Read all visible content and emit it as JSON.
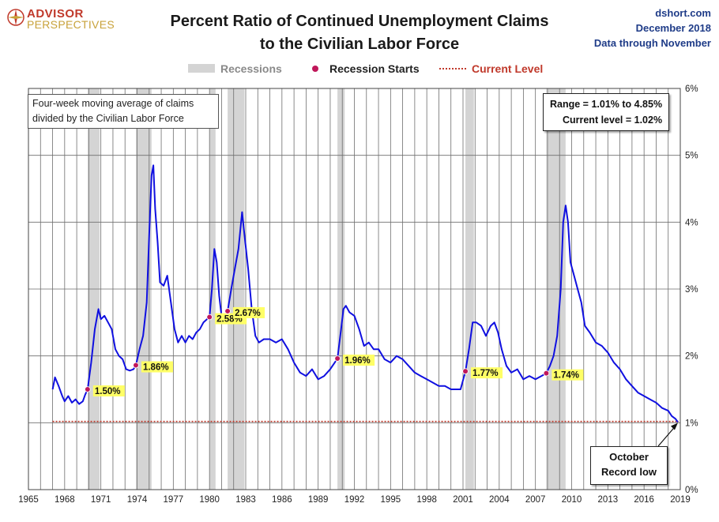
{
  "logo": {
    "line1": "ADVISOR",
    "line2": "PERSPECTIVES"
  },
  "header": {
    "title_line1": "Percent Ratio of Continued Unemployment Claims",
    "title_line2": "to the Civilian Labor Force",
    "source": "dshort.com",
    "date": "December 2018",
    "through": "Data through November"
  },
  "legend": {
    "recessions": "Recessions",
    "recession_starts": "Recession Starts",
    "current_level": "Current Level"
  },
  "notes": {
    "box_line1": "Four-week moving average of claims",
    "box_line2": "divided by the Civilian Labor Force",
    "range": "Range = 1.01% to 4.85%",
    "current": "Current level = 1.02%",
    "callout_line1": "October",
    "callout_line2": "Record low"
  },
  "colors": {
    "series": "#1010e0",
    "recession": "#d4d4d4",
    "current_level": "#c0392b",
    "marker": "#c0175a",
    "label_bg": "#ffff66",
    "title": "#1a1a1a",
    "source": "#1f3c88"
  },
  "chart_data": {
    "type": "line",
    "x_unit": "year",
    "xlim": [
      1965,
      2019
    ],
    "ylim": [
      0,
      6
    ],
    "x_tick_labels": [
      "1965",
      "1968",
      "1971",
      "1974",
      "1977",
      "1980",
      "1983",
      "1986",
      "1989",
      "1992",
      "1995",
      "1998",
      "2001",
      "2004",
      "2007",
      "2010",
      "2013",
      "2016",
      "2019"
    ],
    "y_tick_labels": [
      "0%",
      "1%",
      "2%",
      "3%",
      "4%",
      "5%",
      "6%"
    ],
    "y_axis_side": "right",
    "grid": "vertical lines each year, horizontal lines each 1%",
    "current_level": 1.02,
    "recessions": [
      [
        1969.9,
        1970.9
      ],
      [
        1973.9,
        1975.2
      ],
      [
        1980.0,
        1980.5
      ],
      [
        1981.5,
        1982.9
      ],
      [
        1990.6,
        1991.2
      ],
      [
        2001.2,
        2001.9
      ],
      [
        2007.9,
        2009.5
      ]
    ],
    "recession_starts": [
      {
        "x": 1969.9,
        "y": 1.5,
        "label": "1.50%"
      },
      {
        "x": 1973.9,
        "y": 1.86,
        "label": "1.86%"
      },
      {
        "x": 1980.0,
        "y": 2.58,
        "label": "2.58%"
      },
      {
        "x": 1981.5,
        "y": 2.67,
        "label": "2.67%"
      },
      {
        "x": 1990.6,
        "y": 1.96,
        "label": "1.96%"
      },
      {
        "x": 2001.2,
        "y": 1.77,
        "label": "1.77%"
      },
      {
        "x": 2007.9,
        "y": 1.74,
        "label": "1.74%"
      }
    ],
    "series": [
      {
        "x": [
          1967.0,
          1967.2,
          1967.5,
          1967.8,
          1968.0,
          1968.3,
          1968.6,
          1968.9,
          1969.2,
          1969.5,
          1969.7,
          1969.9,
          1970.2,
          1970.5,
          1970.8,
          1971.0,
          1971.3,
          1971.6,
          1971.9,
          1972.2,
          1972.5,
          1972.8,
          1973.1,
          1973.4,
          1973.7,
          1973.9,
          1974.2,
          1974.5,
          1974.8,
          1975.0,
          1975.2,
          1975.35,
          1975.5,
          1975.7,
          1975.9,
          1976.2,
          1976.5,
          1976.8,
          1977.1,
          1977.4,
          1977.7,
          1978.0,
          1978.3,
          1978.6,
          1978.9,
          1979.2,
          1979.5,
          1979.8,
          1980.0,
          1980.2,
          1980.4,
          1980.6,
          1980.8,
          1981.0,
          1981.3,
          1981.5,
          1981.8,
          1982.1,
          1982.4,
          1982.7,
          1982.9,
          1983.2,
          1983.5,
          1983.8,
          1984.1,
          1984.5,
          1985.0,
          1985.5,
          1986.0,
          1986.5,
          1987.0,
          1987.5,
          1988.0,
          1988.5,
          1989.0,
          1989.5,
          1990.0,
          1990.3,
          1990.6,
          1990.9,
          1991.1,
          1991.3,
          1991.6,
          1992.0,
          1992.4,
          1992.8,
          1993.2,
          1993.6,
          1994.0,
          1994.5,
          1995.0,
          1995.5,
          1996.0,
          1996.5,
          1997.0,
          1997.5,
          1998.0,
          1998.5,
          1999.0,
          1999.5,
          2000.0,
          2000.5,
          2000.8,
          2001.2,
          2001.5,
          2001.8,
          2002.1,
          2002.5,
          2002.9,
          2003.3,
          2003.6,
          2003.9,
          2004.2,
          2004.6,
          2005.0,
          2005.5,
          2006.0,
          2006.5,
          2007.0,
          2007.5,
          2007.9,
          2008.2,
          2008.5,
          2008.8,
          2009.1,
          2009.3,
          2009.5,
          2009.7,
          2009.9,
          2010.2,
          2010.5,
          2010.8,
          2011.1,
          2011.5,
          2012.0,
          2012.5,
          2013.0,
          2013.5,
          2014.0,
          2014.5,
          2015.0,
          2015.5,
          2016.0,
          2016.5,
          2017.0,
          2017.5,
          2018.0,
          2018.3,
          2018.6,
          2018.8
        ],
        "y": [
          1.5,
          1.68,
          1.55,
          1.4,
          1.32,
          1.4,
          1.3,
          1.35,
          1.28,
          1.32,
          1.42,
          1.5,
          1.9,
          2.4,
          2.7,
          2.55,
          2.6,
          2.5,
          2.4,
          2.1,
          2.0,
          1.95,
          1.8,
          1.78,
          1.8,
          1.86,
          2.1,
          2.3,
          2.8,
          3.8,
          4.7,
          4.85,
          4.2,
          3.7,
          3.1,
          3.05,
          3.2,
          2.8,
          2.4,
          2.2,
          2.3,
          2.2,
          2.3,
          2.25,
          2.35,
          2.4,
          2.5,
          2.55,
          2.58,
          3.0,
          3.6,
          3.4,
          2.9,
          2.6,
          2.55,
          2.67,
          3.0,
          3.3,
          3.6,
          4.15,
          3.8,
          3.3,
          2.7,
          2.3,
          2.2,
          2.25,
          2.25,
          2.2,
          2.25,
          2.1,
          1.9,
          1.75,
          1.7,
          1.8,
          1.65,
          1.7,
          1.8,
          1.88,
          1.96,
          2.4,
          2.7,
          2.75,
          2.65,
          2.6,
          2.4,
          2.15,
          2.2,
          2.1,
          2.1,
          1.95,
          1.9,
          2.0,
          1.95,
          1.85,
          1.75,
          1.7,
          1.65,
          1.6,
          1.55,
          1.55,
          1.5,
          1.5,
          1.5,
          1.77,
          2.1,
          2.5,
          2.5,
          2.45,
          2.3,
          2.45,
          2.5,
          2.35,
          2.1,
          1.85,
          1.75,
          1.8,
          1.65,
          1.7,
          1.65,
          1.7,
          1.74,
          1.85,
          2.0,
          2.3,
          3.0,
          4.0,
          4.25,
          4.0,
          3.4,
          3.2,
          3.0,
          2.8,
          2.45,
          2.35,
          2.2,
          2.15,
          2.05,
          1.9,
          1.8,
          1.65,
          1.55,
          1.45,
          1.4,
          1.35,
          1.3,
          1.22,
          1.18,
          1.1,
          1.06,
          1.01
        ]
      }
    ]
  }
}
